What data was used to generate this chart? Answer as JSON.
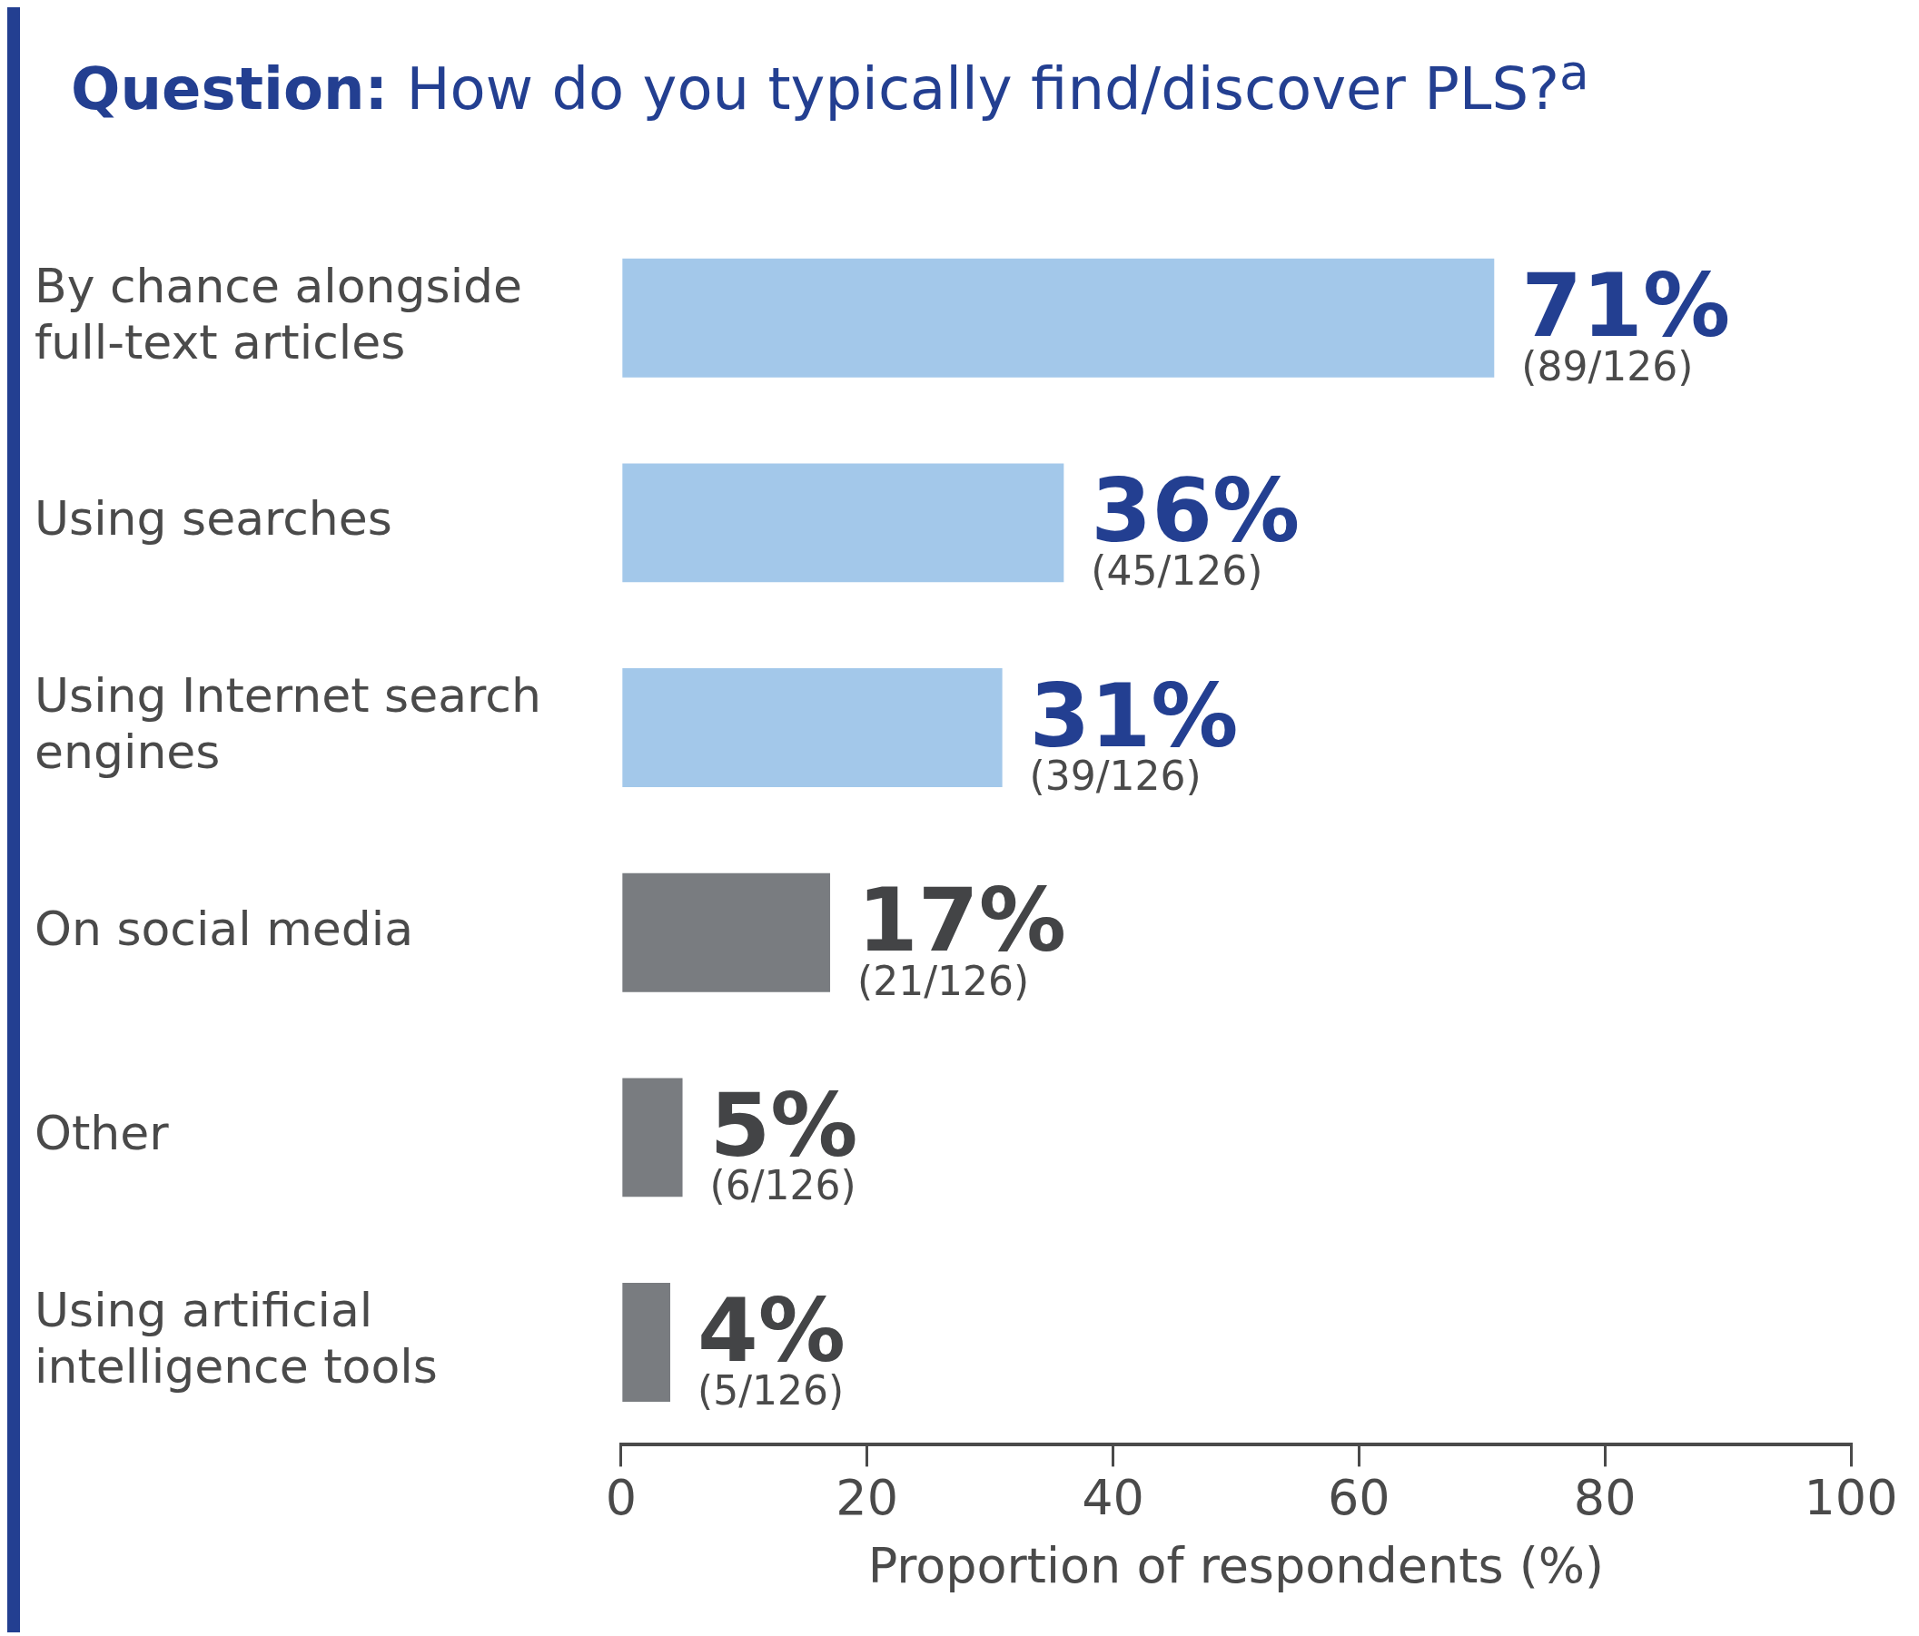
{
  "chart_data": {
    "type": "bar",
    "orientation": "horizontal",
    "title": "Question: How do you typically find/discover PLS?$^{a}$",
    "xlabel": "Proportion of respondents (%)",
    "categories": [
      "By chance alongside full-text articles",
      "Using searches",
      "Using Internet search engines",
      "On social media",
      "Other",
      "Using artificial intelligence tools"
    ],
    "values": [
      71,
      36,
      31,
      17,
      5,
      4
    ],
    "colors": [
      "#a3c8ea",
      "#a3c8ea",
      "#a3c8ea",
      "#797c80",
      "#797c80",
      "#797c80"
    ],
    "value_labels": [
      "71% (89/126)",
      "36% (45/126)",
      "31% (39/126)",
      "17% (21/126)",
      "5% (6/126)",
      "4% (5/126)"
    ],
    "xlim": [
      0,
      100
    ],
    "xticks": [
      0,
      20,
      40,
      60,
      80,
      100
    ],
    "grid": false,
    "legend": false
  }
}
